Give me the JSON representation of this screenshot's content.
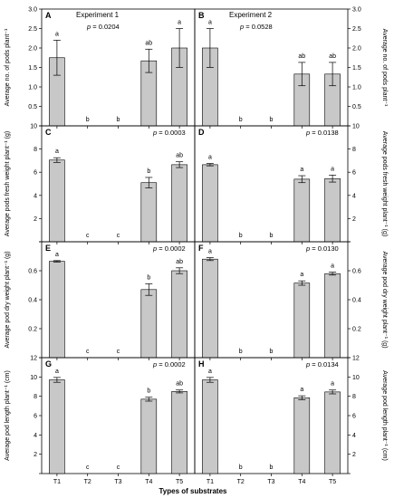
{
  "figure": {
    "xlabel": "Types of substrates",
    "categories": [
      "T1",
      "T2",
      "T3",
      "T4",
      "T5"
    ],
    "bar_color": "#c8c8c8"
  },
  "chart_data": [
    {
      "type": "bar",
      "panel": "A",
      "title": "Experiment 1",
      "pval": "p = 0.0204",
      "ylabel": "Average no. of pods plant⁻¹",
      "side": "left",
      "ylim": [
        0,
        3
      ],
      "ticks": [
        0,
        0.5,
        1.0,
        1.5,
        2.0,
        2.5,
        3.0
      ],
      "tick_labels": [
        "",
        "0.5",
        "1.0",
        "1.5",
        "2.0",
        "2.5",
        "3.0"
      ],
      "values": [
        1.75,
        0,
        0,
        1.67,
        2.0
      ],
      "errors": [
        0.45,
        0,
        0,
        0.3,
        0.5
      ],
      "letters": [
        "a",
        "b",
        "b",
        "ab",
        "a"
      ]
    },
    {
      "type": "bar",
      "panel": "B",
      "title": "Experiment 2",
      "pval": "p = 0.0528",
      "ylabel": "Average no. of pods plant⁻¹",
      "side": "right",
      "ylim": [
        0,
        3
      ],
      "ticks": [
        0,
        0.5,
        1.0,
        1.5,
        2.0,
        2.5,
        3.0
      ],
      "tick_labels": [
        "",
        "0.5",
        "1.0",
        "1.5",
        "2.0",
        "2.5",
        "3.0"
      ],
      "values": [
        2.0,
        0,
        0,
        1.33,
        1.33
      ],
      "errors": [
        0.5,
        0,
        0,
        0.3,
        0.3
      ],
      "letters": [
        "a",
        "b",
        "b",
        "ab",
        "ab"
      ]
    },
    {
      "type": "bar",
      "panel": "C",
      "title": "",
      "pval": "p = 0.0003",
      "ylabel": "Average pods fresh weight plant⁻¹ (g)",
      "side": "left",
      "ylim": [
        0,
        10
      ],
      "ticks": [
        0,
        2,
        4,
        6,
        8,
        10
      ],
      "tick_labels": [
        "",
        "2",
        "4",
        "6",
        "8",
        "10"
      ],
      "values": [
        7.05,
        0,
        0,
        5.1,
        6.65
      ],
      "errors": [
        0.2,
        0,
        0,
        0.45,
        0.25
      ],
      "letters": [
        "a",
        "c",
        "c",
        "b",
        "ab"
      ]
    },
    {
      "type": "bar",
      "panel": "D",
      "title": "",
      "pval": "p = 0.0138",
      "ylabel": "Average pods fresh weight plant⁻¹ (g)",
      "side": "right",
      "ylim": [
        0,
        10
      ],
      "ticks": [
        0,
        2,
        4,
        6,
        8,
        10
      ],
      "tick_labels": [
        "",
        "2",
        "4",
        "6",
        "8",
        "10"
      ],
      "values": [
        6.65,
        0,
        0,
        5.4,
        5.45
      ],
      "errors": [
        0.1,
        0,
        0,
        0.3,
        0.3
      ],
      "letters": [
        "a",
        "b",
        "b",
        "a",
        "a"
      ]
    },
    {
      "type": "bar",
      "panel": "E",
      "title": "",
      "pval": "p = 0.0002",
      "ylabel": "Average pod dry weight plant⁻¹ (g)",
      "side": "left",
      "ylim": [
        0,
        0.8
      ],
      "ticks": [
        0,
        0.2,
        0.4,
        0.6,
        0.8
      ],
      "tick_labels": [
        "",
        "0.2",
        "0.4",
        "0.6",
        ""
      ],
      "values": [
        0.665,
        0,
        0,
        0.47,
        0.6
      ],
      "errors": [
        0.005,
        0,
        0,
        0.04,
        0.02
      ],
      "letters": [
        "a",
        "c",
        "c",
        "b",
        "ab"
      ]
    },
    {
      "type": "bar",
      "panel": "F",
      "title": "",
      "pval": "p = 0.0130",
      "ylabel": "Average pod dry weight plant⁻¹ (g)",
      "side": "right",
      "ylim": [
        0,
        0.8
      ],
      "ticks": [
        0,
        0.2,
        0.4,
        0.6,
        0.8
      ],
      "tick_labels": [
        "",
        "0.2",
        "0.4",
        "0.6",
        ""
      ],
      "values": [
        0.68,
        0,
        0,
        0.515,
        0.58
      ],
      "errors": [
        0.01,
        0,
        0,
        0.015,
        0.01
      ],
      "letters": [
        "a",
        "b",
        "b",
        "a",
        "a"
      ]
    },
    {
      "type": "bar",
      "panel": "G",
      "title": "",
      "pval": "p = 0.0002",
      "ylabel": "Average pod length plant⁻¹ (cm)",
      "side": "left",
      "ylim": [
        0,
        12
      ],
      "ticks": [
        0,
        2,
        4,
        6,
        8,
        10,
        12
      ],
      "tick_labels": [
        "",
        "2",
        "4",
        "6",
        "8",
        "10",
        "12"
      ],
      "values": [
        9.7,
        0,
        0,
        7.7,
        8.5
      ],
      "errors": [
        0.25,
        0,
        0,
        0.2,
        0.15
      ],
      "letters": [
        "a",
        "c",
        "c",
        "b",
        "ab"
      ]
    },
    {
      "type": "bar",
      "panel": "H",
      "title": "",
      "pval": "p = 0.0134",
      "ylabel": "Average pod length plant⁻¹ (cm)",
      "side": "right",
      "ylim": [
        0,
        12
      ],
      "ticks": [
        0,
        2,
        4,
        6,
        8,
        10,
        12
      ],
      "tick_labels": [
        "",
        "2",
        "4",
        "6",
        "8",
        "10",
        "12"
      ],
      "values": [
        9.7,
        0,
        0,
        7.85,
        8.45
      ],
      "errors": [
        0.25,
        0,
        0,
        0.2,
        0.2
      ],
      "letters": [
        "a",
        "b",
        "b",
        "a",
        "a"
      ]
    }
  ]
}
